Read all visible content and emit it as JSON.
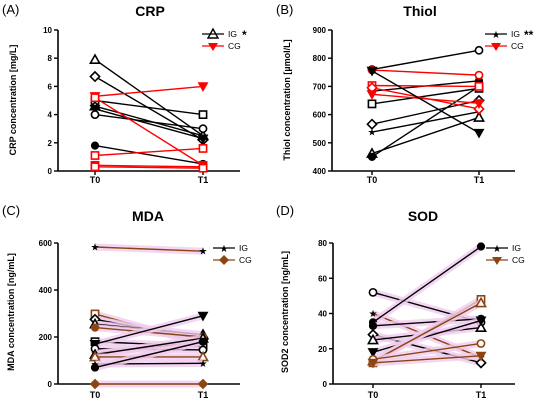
{
  "chart_data": [
    {
      "type": "line",
      "panel_label": "(A)",
      "title": "CRP",
      "ylabel": "CRP concentration [mg/L]",
      "categories": [
        "T0",
        "T1"
      ],
      "ylim": [
        0,
        10
      ],
      "yticks": [
        0,
        2,
        4,
        6,
        8,
        10
      ],
      "significance": "*",
      "legend": [
        {
          "name": "IG",
          "color": "#000000",
          "marker": "triangle"
        },
        {
          "name": "CG",
          "color": "#ff0000",
          "marker": "triangle-down"
        }
      ],
      "series": [
        {
          "group": "IG",
          "marker": "triangle",
          "values": [
            7.9,
            2.5
          ]
        },
        {
          "group": "IG",
          "marker": "diamond",
          "values": [
            6.7,
            2.2
          ]
        },
        {
          "group": "IG",
          "marker": "square",
          "values": [
            5.0,
            4.0
          ]
        },
        {
          "group": "IG",
          "marker": "triangle",
          "values": [
            4.6,
            2.5
          ]
        },
        {
          "group": "IG",
          "marker": "triangle-down",
          "values": [
            4.4,
            2.3
          ]
        },
        {
          "group": "IG",
          "marker": "circle",
          "values": [
            4.0,
            3.0
          ]
        },
        {
          "group": "IG",
          "marker": "circle-filled",
          "values": [
            1.8,
            0.5
          ]
        },
        {
          "group": "CG",
          "marker": "triangle-down",
          "values": [
            5.3,
            6.0
          ]
        },
        {
          "group": "CG",
          "marker": "square",
          "values": [
            5.2,
            0.4
          ]
        },
        {
          "group": "CG",
          "marker": "square",
          "values": [
            1.1,
            1.6
          ]
        },
        {
          "group": "CG",
          "marker": "square",
          "values": [
            0.4,
            0.3
          ]
        },
        {
          "group": "CG",
          "marker": "square",
          "values": [
            0.3,
            0.2
          ]
        }
      ]
    },
    {
      "type": "line",
      "panel_label": "(B)",
      "title": "Thiol",
      "ylabel": "Thiol concentration [µmol/L]",
      "categories": [
        "T0",
        "T1"
      ],
      "ylim": [
        400,
        900
      ],
      "yticks": [
        400,
        500,
        600,
        700,
        800,
        900
      ],
      "significance": "**",
      "legend": [
        {
          "name": "IG",
          "color": "#000000",
          "marker": "star"
        },
        {
          "name": "CG",
          "color": "#ff0000",
          "marker": "triangle-down"
        }
      ],
      "series": [
        {
          "group": "IG",
          "marker": "circle",
          "values": [
            760,
            828
          ]
        },
        {
          "group": "IG",
          "marker": "circle-filled",
          "values": [
            683,
            720
          ]
        },
        {
          "group": "IG",
          "marker": "square",
          "values": [
            638,
            693
          ]
        },
        {
          "group": "IG",
          "marker": "diamond",
          "values": [
            566,
            650
          ]
        },
        {
          "group": "IG",
          "marker": "star",
          "values": [
            538,
            610
          ]
        },
        {
          "group": "IG",
          "marker": "triangle",
          "values": [
            462,
            590
          ]
        },
        {
          "group": "IG",
          "marker": "circle-filled",
          "values": [
            450,
            700
          ]
        },
        {
          "group": "CG",
          "marker": "circle",
          "values": [
            758,
            740
          ]
        },
        {
          "group": "CG",
          "marker": "square",
          "values": [
            703,
            700
          ]
        },
        {
          "group": "CG",
          "marker": "diamond",
          "values": [
            695,
            620
          ]
        },
        {
          "group": "CG",
          "marker": "triangle-down",
          "values": [
            672,
            640
          ]
        },
        {
          "group": "IG",
          "marker": "triangle-down",
          "values": [
            755,
            535
          ]
        }
      ]
    },
    {
      "type": "line",
      "panel_label": "(C)",
      "title": "MDA",
      "ylabel": "MDA concentration [ng/mL]",
      "categories": [
        "T0",
        "T1"
      ],
      "ylim": [
        0,
        600
      ],
      "yticks": [
        0,
        200,
        400,
        600
      ],
      "legend": [
        {
          "name": "IG",
          "color": "#000000",
          "marker": "star"
        },
        {
          "name": "CG",
          "color": "#8b4513",
          "marker": "diamond-filled"
        }
      ],
      "series": [
        {
          "group": "CG",
          "marker": "star",
          "values": [
            583,
            565
          ]
        },
        {
          "group": "CG",
          "marker": "square",
          "values": [
            298,
            170
          ]
        },
        {
          "group": "IG",
          "marker": "diamond",
          "values": [
            275,
            190
          ]
        },
        {
          "group": "IG",
          "marker": "triangle",
          "values": [
            255,
            210
          ]
        },
        {
          "group": "CG",
          "marker": "circle-filled",
          "values": [
            240,
            200
          ]
        },
        {
          "group": "IG",
          "marker": "square",
          "values": [
            180,
            160
          ]
        },
        {
          "group": "IG",
          "marker": "triangle-down",
          "values": [
            170,
            290
          ]
        },
        {
          "group": "IG",
          "marker": "circle",
          "values": [
            150,
            145
          ]
        },
        {
          "group": "CG",
          "marker": "star",
          "values": [
            130,
            180
          ]
        },
        {
          "group": "IG",
          "marker": "triangle",
          "values": [
            125,
            195
          ]
        },
        {
          "group": "CG",
          "marker": "triangle",
          "values": [
            115,
            115
          ]
        },
        {
          "group": "IG",
          "marker": "star",
          "values": [
            85,
            88
          ]
        },
        {
          "group": "IG",
          "marker": "circle-filled",
          "values": [
            70,
            180
          ]
        },
        {
          "group": "CG",
          "marker": "diamond-filled",
          "values": [
            0,
            0
          ]
        }
      ]
    },
    {
      "type": "line",
      "panel_label": "(D)",
      "title": "SOD",
      "ylabel": "SOD2 concentration [ng/mL]",
      "categories": [
        "T0",
        "T1"
      ],
      "ylim": [
        0,
        80
      ],
      "yticks": [
        0,
        20,
        40,
        60,
        80
      ],
      "legend": [
        {
          "name": "IG",
          "color": "#000000",
          "marker": "star"
        },
        {
          "name": "CG",
          "color": "#8b4513",
          "marker": "triangle-down"
        }
      ],
      "series": [
        {
          "group": "IG",
          "marker": "circle",
          "values": [
            52,
            35
          ]
        },
        {
          "group": "CG",
          "marker": "star",
          "values": [
            40,
            15
          ]
        },
        {
          "group": "IG",
          "marker": "circle-filled",
          "values": [
            35,
            78
          ]
        },
        {
          "group": "IG",
          "marker": "circle-filled",
          "values": [
            33,
            37
          ]
        },
        {
          "group": "IG",
          "marker": "diamond",
          "values": [
            28,
            12
          ]
        },
        {
          "group": "IG",
          "marker": "triangle",
          "values": [
            25,
            32
          ]
        },
        {
          "group": "IG",
          "marker": "triangle-down",
          "values": [
            18,
            36
          ]
        },
        {
          "group": "CG",
          "marker": "square",
          "values": [
            12,
            48
          ]
        },
        {
          "group": "CG",
          "marker": "triangle",
          "values": [
            13,
            46
          ]
        },
        {
          "group": "CG",
          "marker": "circle",
          "values": [
            14,
            23
          ]
        },
        {
          "group": "CG",
          "marker": "triangle-down",
          "values": [
            12,
            16
          ]
        }
      ]
    }
  ]
}
